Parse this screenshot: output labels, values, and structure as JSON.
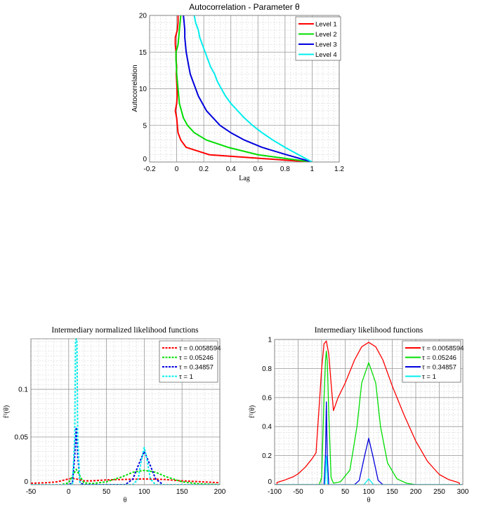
{
  "chart_data": [
    {
      "id": "autocorr",
      "type": "line",
      "title": "Autocorrelation - Parameter θ",
      "xlabel": "Lag",
      "ylabel": "Autocorrelation",
      "xlim": [
        -0.2,
        1.2
      ],
      "ylim": [
        0,
        20
      ],
      "xticks": [
        -0.2,
        0,
        0.2,
        0.4,
        0.6,
        0.8,
        1,
        1.2
      ],
      "xtick_labels": [
        "-0.2",
        "0",
        "0.2",
        "0.4",
        "0.6",
        "0.8",
        "1",
        "1.2"
      ],
      "yticks": [
        0,
        5,
        10,
        15,
        20
      ],
      "ytick_labels": [
        "0",
        "5",
        "10",
        "15",
        "20"
      ],
      "grid": true,
      "legend_position": "top-right",
      "line_style": "solid",
      "series": [
        {
          "name": "Level 1",
          "color": "#ff0000",
          "x": [
            1.0,
            0.24,
            0.07,
            0.03,
            0.01,
            0.005,
            0.0,
            -0.01,
            0.0,
            0.003,
            0.002,
            0.0,
            -0.003,
            0.0,
            -0.005,
            -0.005,
            -0.01,
            -0.01,
            0.005,
            0.01,
            0.01
          ],
          "y": [
            0,
            1,
            2,
            3,
            4,
            5,
            6,
            7,
            8,
            9,
            10,
            11,
            12,
            13,
            14,
            15,
            16,
            17,
            18,
            19,
            20
          ]
        },
        {
          "name": "Level 2",
          "color": "#00dd00",
          "x": [
            1.0,
            0.6,
            0.38,
            0.22,
            0.13,
            0.08,
            0.05,
            0.035,
            0.02,
            0.015,
            0.01,
            0.005,
            0.0,
            -0.002,
            -0.005,
            -0.005,
            0.01,
            0.015,
            0.02,
            0.025,
            0.03
          ],
          "y": [
            0,
            1,
            2,
            3,
            4,
            5,
            6,
            7,
            8,
            9,
            10,
            11,
            12,
            13,
            14,
            15,
            16,
            17,
            18,
            19,
            20
          ]
        },
        {
          "name": "Level 3",
          "color": "#0000dd",
          "x": [
            1.0,
            0.81,
            0.63,
            0.5,
            0.4,
            0.32,
            0.27,
            0.22,
            0.19,
            0.16,
            0.14,
            0.12,
            0.1,
            0.09,
            0.08,
            0.07,
            0.065,
            0.06,
            0.06,
            0.055,
            0.05
          ],
          "y": [
            0,
            1,
            2,
            3,
            4,
            5,
            6,
            7,
            8,
            9,
            10,
            11,
            12,
            13,
            14,
            15,
            16,
            17,
            18,
            19,
            20
          ]
        },
        {
          "name": "Level 4",
          "color": "#00eeee",
          "x": [
            1.0,
            0.9,
            0.8,
            0.71,
            0.63,
            0.56,
            0.5,
            0.45,
            0.4,
            0.36,
            0.33,
            0.3,
            0.28,
            0.25,
            0.23,
            0.21,
            0.19,
            0.17,
            0.16,
            0.14,
            0.13
          ],
          "y": [
            0,
            1,
            2,
            3,
            4,
            5,
            6,
            7,
            8,
            9,
            10,
            11,
            12,
            13,
            14,
            15,
            16,
            17,
            18,
            19,
            20
          ]
        }
      ]
    },
    {
      "id": "normalized",
      "type": "line",
      "title": "Intermediary normalized likelihood functions",
      "xlabel": "θ",
      "ylabel": "fᵀ(θ)",
      "xlim": [
        -50,
        200
      ],
      "ylim": [
        0,
        0.153
      ],
      "xticks": [
        -50,
        0,
        50,
        100,
        150,
        200
      ],
      "xtick_labels": [
        "-50",
        "0",
        "50",
        "100",
        "150",
        "200"
      ],
      "yticks": [
        0,
        0.05,
        0.1
      ],
      "ytick_labels": [
        "0",
        "0.05",
        "0.1"
      ],
      "grid": true,
      "legend_position": "top-right",
      "line_style": "dashed",
      "series": [
        {
          "name": "τ = 0.0058594",
          "color": "#ff0000",
          "x": [
            -50,
            -30,
            -15,
            -5,
            0,
            5,
            10,
            15,
            20,
            30,
            50,
            75,
            100,
            125,
            150,
            175,
            200
          ],
          "y": [
            0.0015,
            0.002,
            0.003,
            0.005,
            0.006,
            0.0065,
            0.006,
            0.005,
            0.004,
            0.004,
            0.005,
            0.0055,
            0.006,
            0.0055,
            0.004,
            0.003,
            0.002
          ]
        },
        {
          "name": "τ = 0.05246",
          "color": "#00dd00",
          "x": [
            -50,
            -10,
            0,
            5,
            10,
            15,
            20,
            30,
            50,
            70,
            85,
            100,
            115,
            130,
            150,
            170,
            200
          ],
          "y": [
            0,
            0,
            0.002,
            0.009,
            0.016,
            0.009,
            0.002,
            0.001,
            0.003,
            0.008,
            0.013,
            0.015,
            0.013,
            0.008,
            0.003,
            0.001,
            0
          ]
        },
        {
          "name": "τ = 0.34857",
          "color": "#0000dd",
          "x": [
            -50,
            0,
            5,
            8,
            10,
            12,
            15,
            20,
            75,
            85,
            92,
            100,
            108,
            115,
            125,
            200
          ],
          "y": [
            0,
            0,
            0.002,
            0.03,
            0.06,
            0.03,
            0.002,
            0,
            0,
            0.006,
            0.02,
            0.035,
            0.02,
            0.006,
            0,
            0
          ]
        },
        {
          "name": "τ = 1",
          "color": "#00eeee",
          "x": [
            -50,
            5,
            8,
            9,
            10,
            11,
            12,
            15,
            85,
            92,
            96,
            100,
            104,
            108,
            115,
            200
          ],
          "y": [
            0,
            0,
            0.05,
            0.15,
            0.153,
            0.15,
            0.05,
            0,
            0,
            0.006,
            0.025,
            0.039,
            0.025,
            0.006,
            0,
            0
          ]
        }
      ]
    },
    {
      "id": "likelihood",
      "type": "line",
      "title": "Intermediary likelihood functions",
      "xlabel": "θ",
      "ylabel": "fᵀ(θ)",
      "xlim": [
        -100,
        300
      ],
      "ylim": [
        0,
        1
      ],
      "xticks": [
        -100,
        -50,
        0,
        50,
        100,
        150,
        200,
        250,
        300
      ],
      "xtick_labels": [
        "-100",
        "-50",
        "0",
        "50",
        "100",
        "150",
        "200",
        "250",
        "300"
      ],
      "yticks": [
        0,
        0.2,
        0.4,
        0.6,
        0.8,
        1
      ],
      "ytick_labels": [
        "0",
        "0.2",
        "0.4",
        "0.6",
        "0.8",
        "1"
      ],
      "grid": true,
      "legend_position": "top-right",
      "line_style": "solid",
      "series": [
        {
          "name": "τ = 0.0058594",
          "color": "#ff0000",
          "x": [
            -95,
            -95,
            -80,
            -60,
            -50,
            -35,
            -20,
            -12,
            -5,
            0,
            5,
            10,
            15,
            20,
            25,
            35,
            50,
            70,
            85,
            100,
            115,
            130,
            150,
            175,
            200,
            225,
            250,
            270,
            290,
            293,
            293
          ],
          "y": [
            0,
            0.015,
            0.03,
            0.055,
            0.075,
            0.12,
            0.18,
            0.22,
            0.55,
            0.8,
            0.97,
            0.99,
            0.9,
            0.7,
            0.51,
            0.6,
            0.7,
            0.86,
            0.95,
            0.98,
            0.95,
            0.86,
            0.68,
            0.48,
            0.3,
            0.16,
            0.07,
            0.035,
            0.015,
            0.01,
            0
          ]
        },
        {
          "name": "τ = 0.05246",
          "color": "#00dd00",
          "x": [
            -100,
            -5,
            0,
            5,
            8,
            10,
            12,
            15,
            20,
            25,
            40,
            60,
            75,
            85,
            100,
            115,
            125,
            140,
            160,
            180,
            200,
            300
          ],
          "y": [
            0,
            0,
            0.05,
            0.6,
            0.85,
            0.92,
            0.85,
            0.5,
            0.05,
            0.01,
            0.02,
            0.1,
            0.4,
            0.7,
            0.84,
            0.7,
            0.4,
            0.15,
            0.04,
            0.01,
            0,
            0
          ]
        },
        {
          "name": "τ = 0.34857",
          "color": "#0000dd",
          "x": [
            -100,
            5,
            8,
            10,
            12,
            15,
            70,
            80,
            90,
            100,
            110,
            120,
            130,
            300
          ],
          "y": [
            0,
            0,
            0.2,
            0.57,
            0.2,
            0,
            0,
            0.03,
            0.18,
            0.32,
            0.18,
            0.03,
            0,
            0
          ]
        },
        {
          "name": "τ = 1",
          "color": "#00eeee",
          "x": [
            -100,
            7,
            9,
            10,
            11,
            13,
            90,
            95,
            100,
            105,
            110,
            300
          ],
          "y": [
            0,
            0,
            0.15,
            0.2,
            0.15,
            0,
            0,
            0.02,
            0.04,
            0.02,
            0,
            0
          ]
        }
      ]
    }
  ]
}
